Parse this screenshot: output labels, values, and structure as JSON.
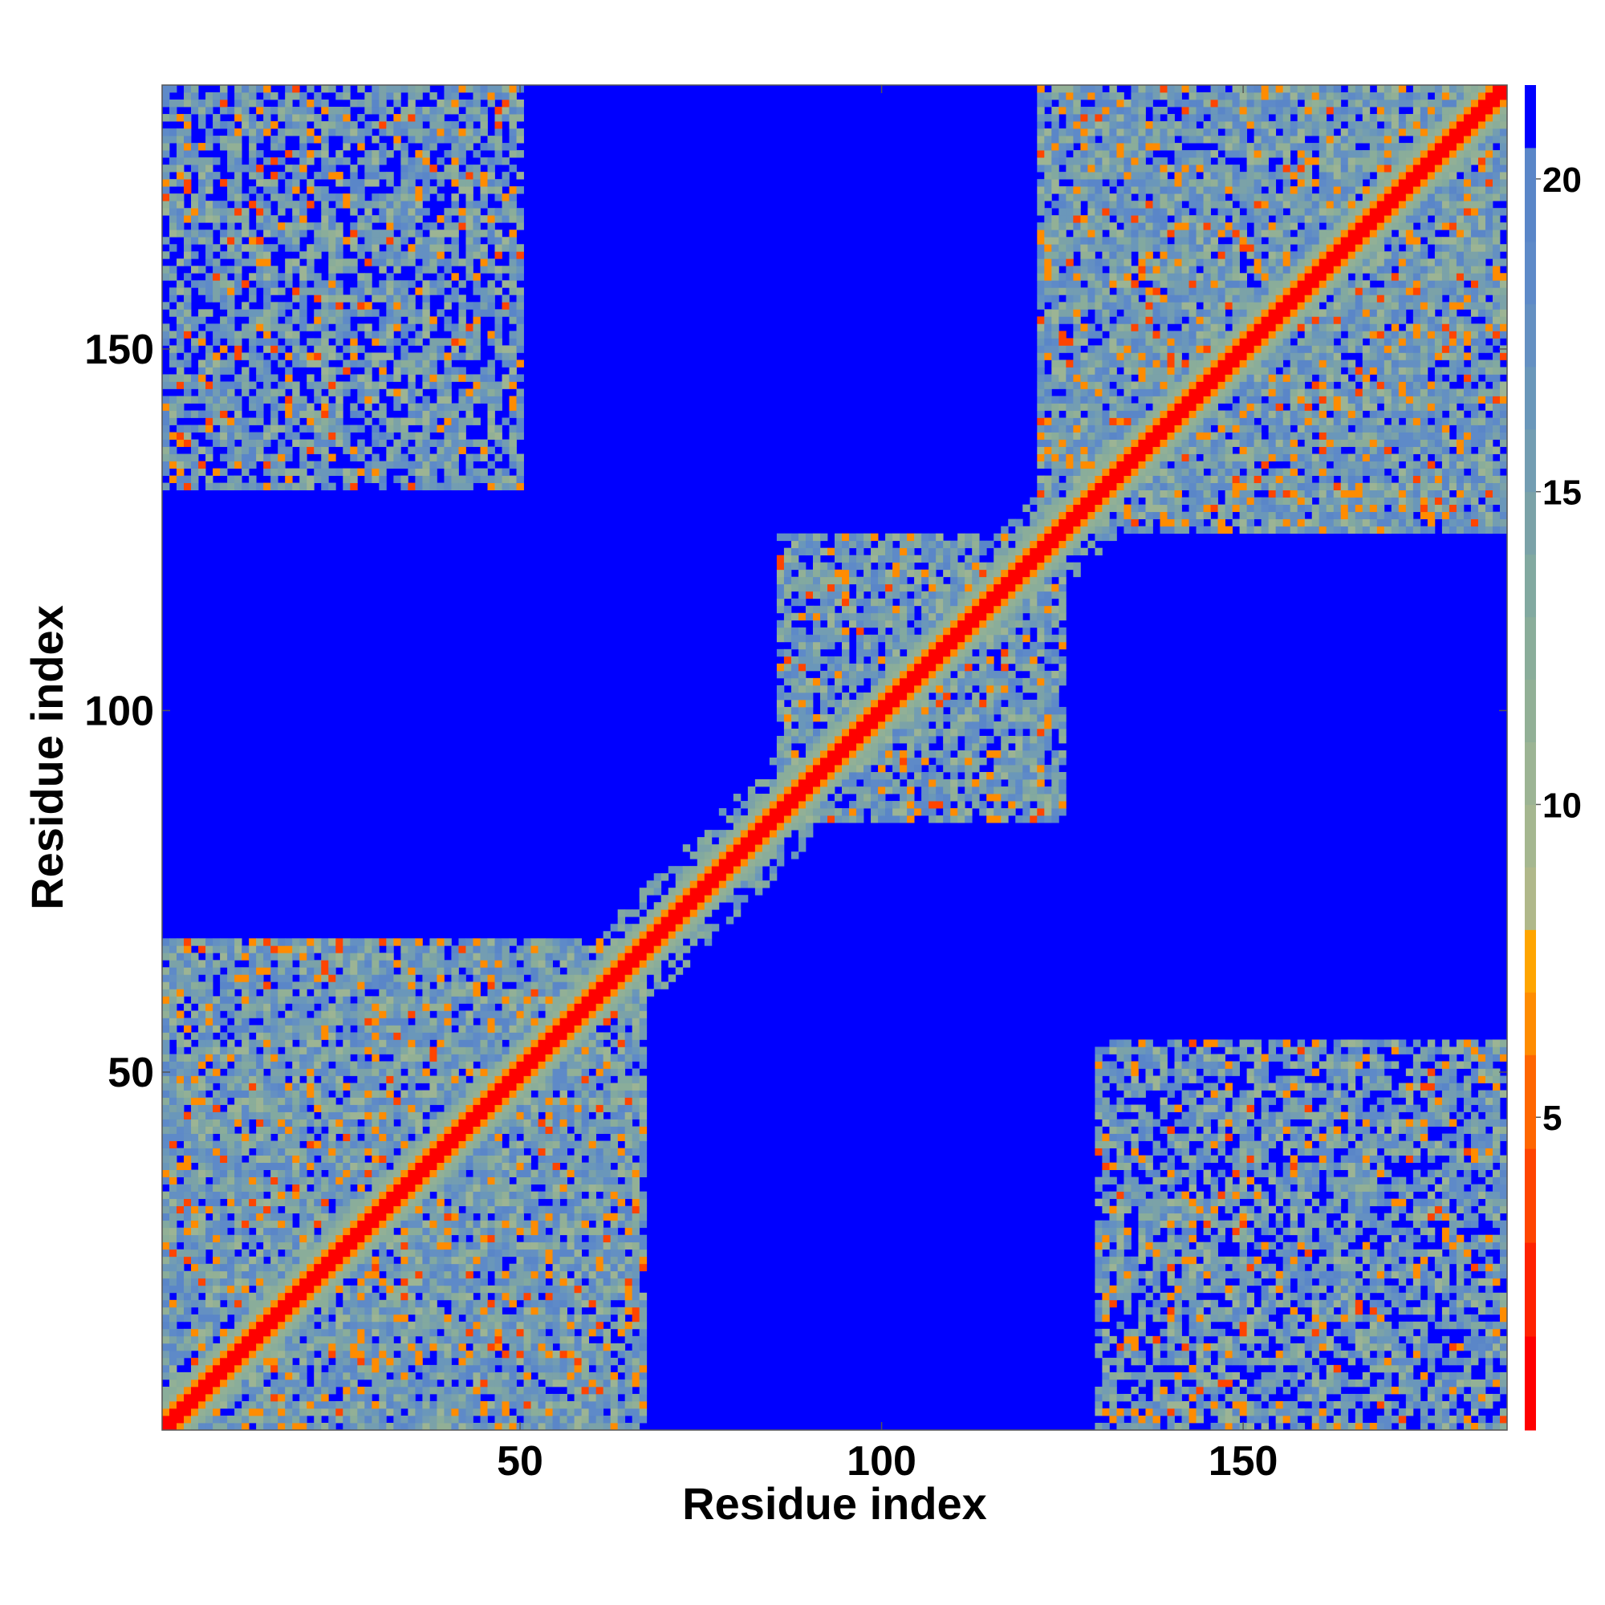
{
  "chart_data": {
    "type": "heatmap",
    "title": "",
    "xlabel": "Residue index",
    "ylabel": "Residue index",
    "n_residues": 186,
    "xlim": [
      1,
      186
    ],
    "ylim": [
      1,
      186
    ],
    "x_ticks": [
      {
        "value": 50,
        "label": "50"
      },
      {
        "value": 100,
        "label": "100"
      },
      {
        "value": 150,
        "label": "150"
      }
    ],
    "y_ticks": [
      {
        "value": 50,
        "label": "50"
      },
      {
        "value": 100,
        "label": "100"
      },
      {
        "value": 150,
        "label": "150"
      }
    ],
    "colorbar": {
      "range": [
        0,
        21.5
      ],
      "ticks": [
        {
          "value": 5,
          "label": "5"
        },
        {
          "value": 10,
          "label": "10"
        },
        {
          "value": 15,
          "label": "15"
        },
        {
          "value": 20,
          "label": "20"
        }
      ],
      "bands": [
        {
          "to": 1.5,
          "color": "#ff0000"
        },
        {
          "to": 3.0,
          "color": "#ff2200"
        },
        {
          "to": 4.5,
          "color": "#ff4400"
        },
        {
          "to": 6.0,
          "color": "#ff6600"
        },
        {
          "to": 7.0,
          "color": "#ff8c00"
        },
        {
          "to": 8.0,
          "color": "#ffa500"
        },
        {
          "to": 9.0,
          "color": "#b0b88a"
        },
        {
          "to": 10.0,
          "color": "#a5b790"
        },
        {
          "to": 11.0,
          "color": "#9cb494"
        },
        {
          "to": 12.0,
          "color": "#92b096"
        },
        {
          "to": 13.0,
          "color": "#8aad9a"
        },
        {
          "to": 14.0,
          "color": "#82a9a0"
        },
        {
          "to": 15.0,
          "color": "#7ba2a8"
        },
        {
          "to": 16.0,
          "color": "#739db2"
        },
        {
          "to": 17.0,
          "color": "#6a97ba"
        },
        {
          "to": 18.0,
          "color": "#6490c2"
        },
        {
          "to": 19.0,
          "color": "#5e8ac8"
        },
        {
          "to": 20.5,
          "color": "#5a86c8"
        },
        {
          "to": 21.5,
          "color": "#0000ff"
        }
      ]
    },
    "background_value": 21,
    "diagonal_band": {
      "core_max_offset": 1,
      "orange_offset": 2,
      "halo_offset": 4
    },
    "contact_regions": [
      {
        "x": [
          1,
          67
        ],
        "y": [
          1,
          68
        ],
        "density": 0.9
      },
      {
        "x": [
          86,
          125
        ],
        "y": [
          85,
          124
        ],
        "density": 0.85
      },
      {
        "x": [
          122,
          186
        ],
        "y": [
          125,
          186
        ],
        "density": 0.9
      },
      {
        "x": [
          1,
          50
        ],
        "y": [
          131,
          186
        ],
        "density": 0.7
      },
      {
        "x": [
          130,
          186
        ],
        "y": [
          1,
          54
        ],
        "density": 0.7
      }
    ],
    "colormap_note": "blue = distance 20+ , red = distance < 5"
  }
}
